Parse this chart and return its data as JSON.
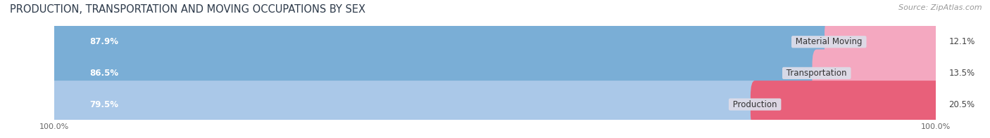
{
  "title": "PRODUCTION, TRANSPORTATION AND MOVING OCCUPATIONS BY SEX",
  "source": "Source: ZipAtlas.com",
  "categories": [
    "Material Moving",
    "Transportation",
    "Production"
  ],
  "male_values": [
    87.9,
    86.5,
    79.5
  ],
  "female_values": [
    12.1,
    13.5,
    20.5
  ],
  "male_colors": [
    "#7aaed6",
    "#7aaed6",
    "#aac8e8"
  ],
  "female_colors": [
    "#f4a8c0",
    "#f4a8c0",
    "#e8607a"
  ],
  "track_color": "#e0e0e8",
  "title_fontsize": 10.5,
  "source_fontsize": 8,
  "label_fontsize": 8.5,
  "value_fontsize": 8.5,
  "tick_fontsize": 8,
  "background_color": "#ffffff",
  "track_bg": "#dcdce8"
}
